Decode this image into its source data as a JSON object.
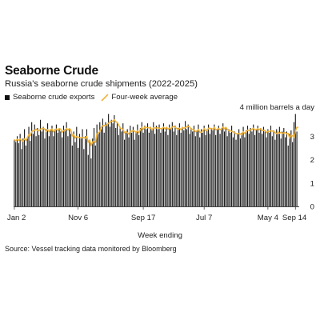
{
  "header": {
    "title": "Seaborne Crude",
    "subtitle": "Russia's seaborne crude shipments (2022-2025)"
  },
  "legend": {
    "bars_label": "Seaborne crude exports",
    "line_label": "Four-week average"
  },
  "source": "Source: Vessel tracking data monitored by Bloomberg",
  "colors": {
    "bars": "#1a1a1a",
    "average_line": "#f2b43a",
    "axis": "#444444"
  },
  "chart_data": {
    "type": "bar",
    "title": "Seaborne Crude",
    "subtitle": "Russia's seaborne crude shipments (2022-2025)",
    "xlabel": "Week ending",
    "ylabel": "",
    "unit_annotation": "4 million barrels a day",
    "ylim": [
      0,
      4
    ],
    "y_ticks": [
      0,
      1,
      2,
      3,
      4
    ],
    "x_tick_labels": [
      {
        "index": 0,
        "label": "Jan 2"
      },
      {
        "index": 44,
        "label": "Nov 6"
      },
      {
        "index": 89,
        "label": "Sep 17"
      },
      {
        "index": 131,
        "label": "Jul 7"
      },
      {
        "index": 175,
        "label": "May 4"
      },
      {
        "index": 194,
        "label": "Sep 14"
      }
    ],
    "grid": false,
    "legend_position": "top-left",
    "series": [
      {
        "name": "Seaborne crude exports",
        "type": "bar",
        "values": [
          2.85,
          2.75,
          3.0,
          2.7,
          3.1,
          2.45,
          2.9,
          3.3,
          2.6,
          2.95,
          3.4,
          2.8,
          3.6,
          3.1,
          3.5,
          3.0,
          3.35,
          3.05,
          3.7,
          3.2,
          3.4,
          2.9,
          3.3,
          3.55,
          3.0,
          3.25,
          3.45,
          3.0,
          3.3,
          3.5,
          3.15,
          3.35,
          3.2,
          2.95,
          3.45,
          3.3,
          3.6,
          3.0,
          3.35,
          3.1,
          2.6,
          3.2,
          2.75,
          3.4,
          2.5,
          3.1,
          2.9,
          3.3,
          2.45,
          3.0,
          3.3,
          2.2,
          2.85,
          2.05,
          2.9,
          3.35,
          2.6,
          3.5,
          3.1,
          3.6,
          3.3,
          3.75,
          3.15,
          3.6,
          3.5,
          3.95,
          3.4,
          3.7,
          3.55,
          3.9,
          3.35,
          3.6,
          3.05,
          3.4,
          3.2,
          3.55,
          2.85,
          3.15,
          3.3,
          2.95,
          3.45,
          3.15,
          3.4,
          2.85,
          3.2,
          3.5,
          3.05,
          3.35,
          3.6,
          3.15,
          3.45,
          3.3,
          3.55,
          3.15,
          3.4,
          3.25,
          3.6,
          3.1,
          3.45,
          3.3,
          3.5,
          3.15,
          3.35,
          3.55,
          3.2,
          3.4,
          3.05,
          3.5,
          3.3,
          3.6,
          3.2,
          3.45,
          3.05,
          3.35,
          3.55,
          3.15,
          3.4,
          3.25,
          3.65,
          3.3,
          3.5,
          3.1,
          3.35,
          3.2,
          3.45,
          3.0,
          3.25,
          3.5,
          2.95,
          3.3,
          3.15,
          3.45,
          3.05,
          3.3,
          3.5,
          3.1,
          3.35,
          3.25,
          3.5,
          3.05,
          3.3,
          3.45,
          3.1,
          3.35,
          3.55,
          3.2,
          3.4,
          3.0,
          3.3,
          3.15,
          3.45,
          2.95,
          3.2,
          2.85,
          3.1,
          3.3,
          2.9,
          3.15,
          3.4,
          2.95,
          3.25,
          3.45,
          3.1,
          3.35,
          3.2,
          3.5,
          3.05,
          3.3,
          3.45,
          3.15,
          3.35,
          3.1,
          3.4,
          3.2,
          2.95,
          3.3,
          3.15,
          3.45,
          3.0,
          3.25,
          2.85,
          3.3,
          3.1,
          3.4,
          2.9,
          3.2,
          3.35,
          2.95,
          3.2,
          2.6,
          3.1,
          3.25,
          2.75,
          3.6,
          3.95,
          3.2
        ]
      },
      {
        "name": "Four-week average",
        "type": "line",
        "values": [
          2.85,
          2.8,
          2.87,
          2.82,
          2.89,
          2.81,
          2.79,
          2.89,
          2.81,
          2.94,
          3.06,
          3.03,
          3.2,
          3.23,
          3.25,
          3.3,
          3.24,
          3.23,
          3.3,
          3.33,
          3.34,
          3.3,
          3.2,
          3.29,
          3.19,
          3.28,
          3.31,
          3.18,
          3.25,
          3.31,
          3.24,
          3.33,
          3.3,
          3.17,
          3.24,
          3.23,
          3.33,
          3.26,
          3.33,
          3.26,
          3.01,
          3.07,
          2.92,
          2.99,
          2.96,
          2.94,
          2.94,
          2.95,
          2.94,
          2.91,
          2.99,
          2.74,
          2.84,
          2.6,
          2.75,
          2.79,
          2.73,
          3.1,
          3.14,
          3.2,
          3.38,
          3.44,
          3.46,
          3.45,
          3.5,
          3.55,
          3.61,
          3.64,
          3.65,
          3.7,
          3.62,
          3.59,
          3.48,
          3.35,
          3.32,
          3.3,
          3.15,
          3.19,
          3.15,
          3.09,
          3.21,
          3.21,
          3.24,
          3.21,
          3.15,
          3.24,
          3.15,
          3.28,
          3.38,
          3.29,
          3.39,
          3.38,
          3.36,
          3.36,
          3.36,
          3.27,
          3.36,
          3.35,
          3.35,
          3.36,
          3.34,
          3.32,
          3.33,
          3.39,
          3.31,
          3.38,
          3.3,
          3.35,
          3.32,
          3.39,
          3.42,
          3.39,
          3.33,
          3.29,
          3.35,
          3.27,
          3.37,
          3.34,
          3.37,
          3.4,
          3.43,
          3.39,
          3.31,
          3.29,
          3.27,
          3.19,
          3.22,
          3.29,
          3.17,
          3.17,
          3.23,
          3.33,
          3.23,
          3.24,
          3.34,
          3.34,
          3.32,
          3.3,
          3.38,
          3.27,
          3.3,
          3.33,
          3.28,
          3.31,
          3.39,
          3.32,
          3.38,
          3.29,
          3.24,
          3.23,
          3.21,
          3.19,
          3.15,
          3.11,
          3.1,
          3.12,
          3.09,
          3.06,
          3.19,
          3.12,
          3.19,
          3.26,
          3.25,
          3.27,
          3.29,
          3.34,
          3.27,
          3.28,
          3.33,
          3.27,
          3.32,
          3.24,
          3.25,
          3.25,
          3.15,
          3.21,
          3.2,
          3.23,
          3.22,
          3.21,
          3.15,
          3.11,
          3.18,
          3.12,
          3.17,
          3.12,
          3.14,
          3.16,
          3.1,
          3.12,
          2.92,
          3.05,
          3.02,
          2.94,
          3.22,
          3.38,
          3.38
        ]
      }
    ]
  }
}
